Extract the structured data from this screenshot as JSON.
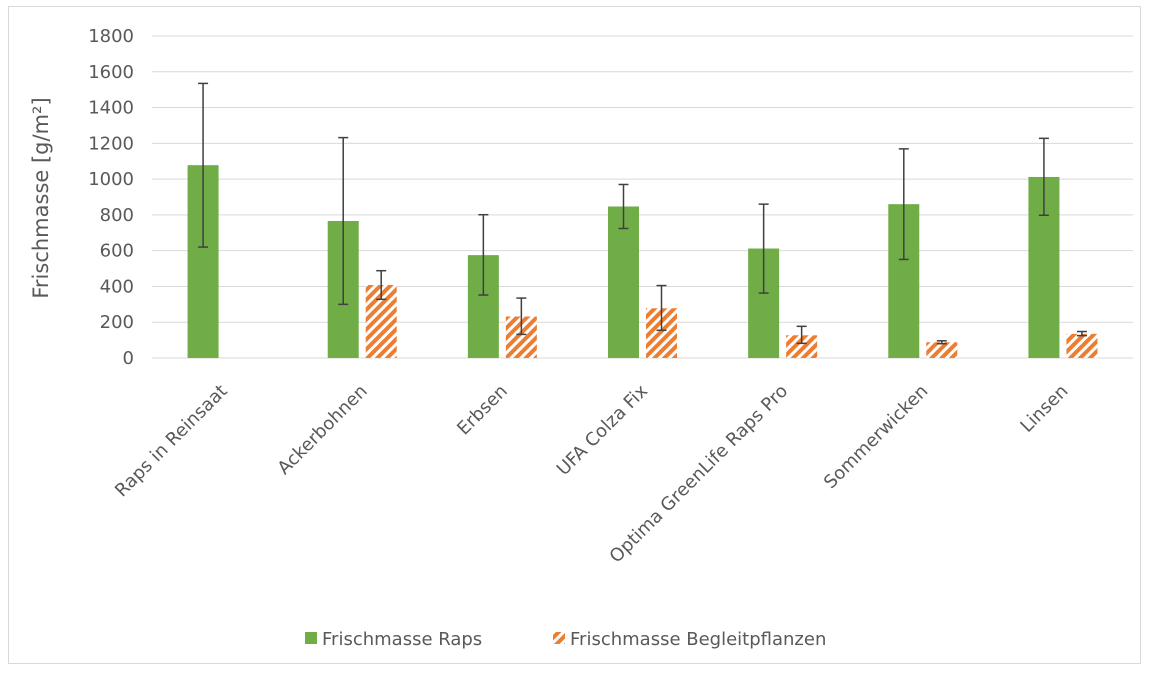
{
  "chart_data": {
    "type": "bar",
    "title": "",
    "xlabel": "",
    "ylabel": "Frischmasse [g/m²]",
    "ylim": [
      0,
      1800
    ],
    "yticks": [
      0,
      200,
      400,
      600,
      800,
      1000,
      1200,
      1400,
      1600,
      1800
    ],
    "grid": true,
    "legend_position": "bottom",
    "categories": [
      "Raps in Reinsaat",
      "Ackerbohnen",
      "Erbsen",
      "UFA Colza Fix",
      "Optima GreenLife Raps Pro",
      "Sommerwicken",
      "Linsen"
    ],
    "series": [
      {
        "name": "Frischmasse Raps",
        "color": "#70ad47",
        "pattern": "solid",
        "values": [
          1078,
          766,
          575,
          847,
          612,
          860,
          1012
        ],
        "error_low": [
          620,
          300,
          352,
          724,
          363,
          551,
          798
        ],
        "error_high": [
          1535,
          1232,
          801,
          970,
          860,
          1169,
          1228
        ]
      },
      {
        "name": "Frischmasse Begleitpflanzen",
        "color": "#ed7d31",
        "pattern": "hatched",
        "values": [
          null,
          408,
          232,
          278,
          127,
          88,
          135
        ],
        "error_low": [
          null,
          328,
          132,
          155,
          82,
          80,
          125
        ],
        "error_high": [
          null,
          488,
          335,
          405,
          177,
          96,
          148
        ]
      }
    ]
  }
}
